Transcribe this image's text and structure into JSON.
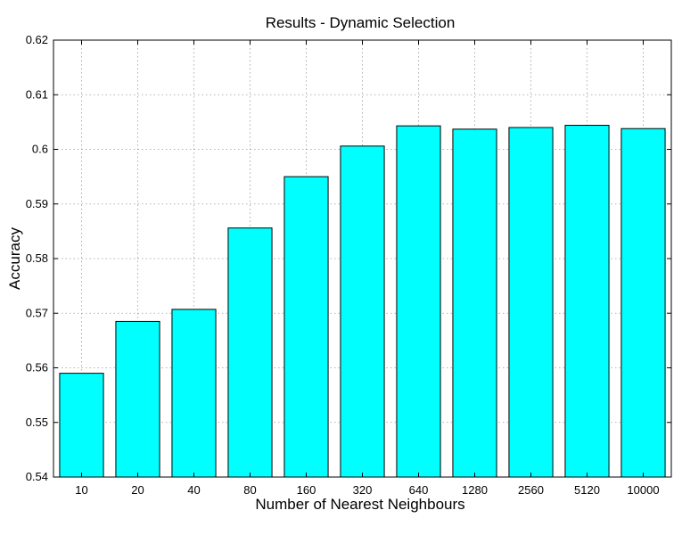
{
  "chart_data": {
    "type": "bar",
    "title": "Results - Dynamic Selection",
    "xlabel": "Number of Nearest Neighbours",
    "ylabel": "Accuracy",
    "categories": [
      "10",
      "20",
      "40",
      "80",
      "160",
      "320",
      "640",
      "1280",
      "2560",
      "5120",
      "10000"
    ],
    "values": [
      0.559,
      0.5685,
      0.5707,
      0.5856,
      0.595,
      0.6006,
      0.6043,
      0.6037,
      0.604,
      0.6044,
      0.6038
    ],
    "ylim": [
      0.54,
      0.62
    ],
    "yticks": [
      "0.54",
      "0.55",
      "0.56",
      "0.57",
      "0.58",
      "0.59",
      "0.6",
      "0.61",
      "0.62"
    ],
    "grid": true,
    "bar_color": "#00ffff"
  }
}
